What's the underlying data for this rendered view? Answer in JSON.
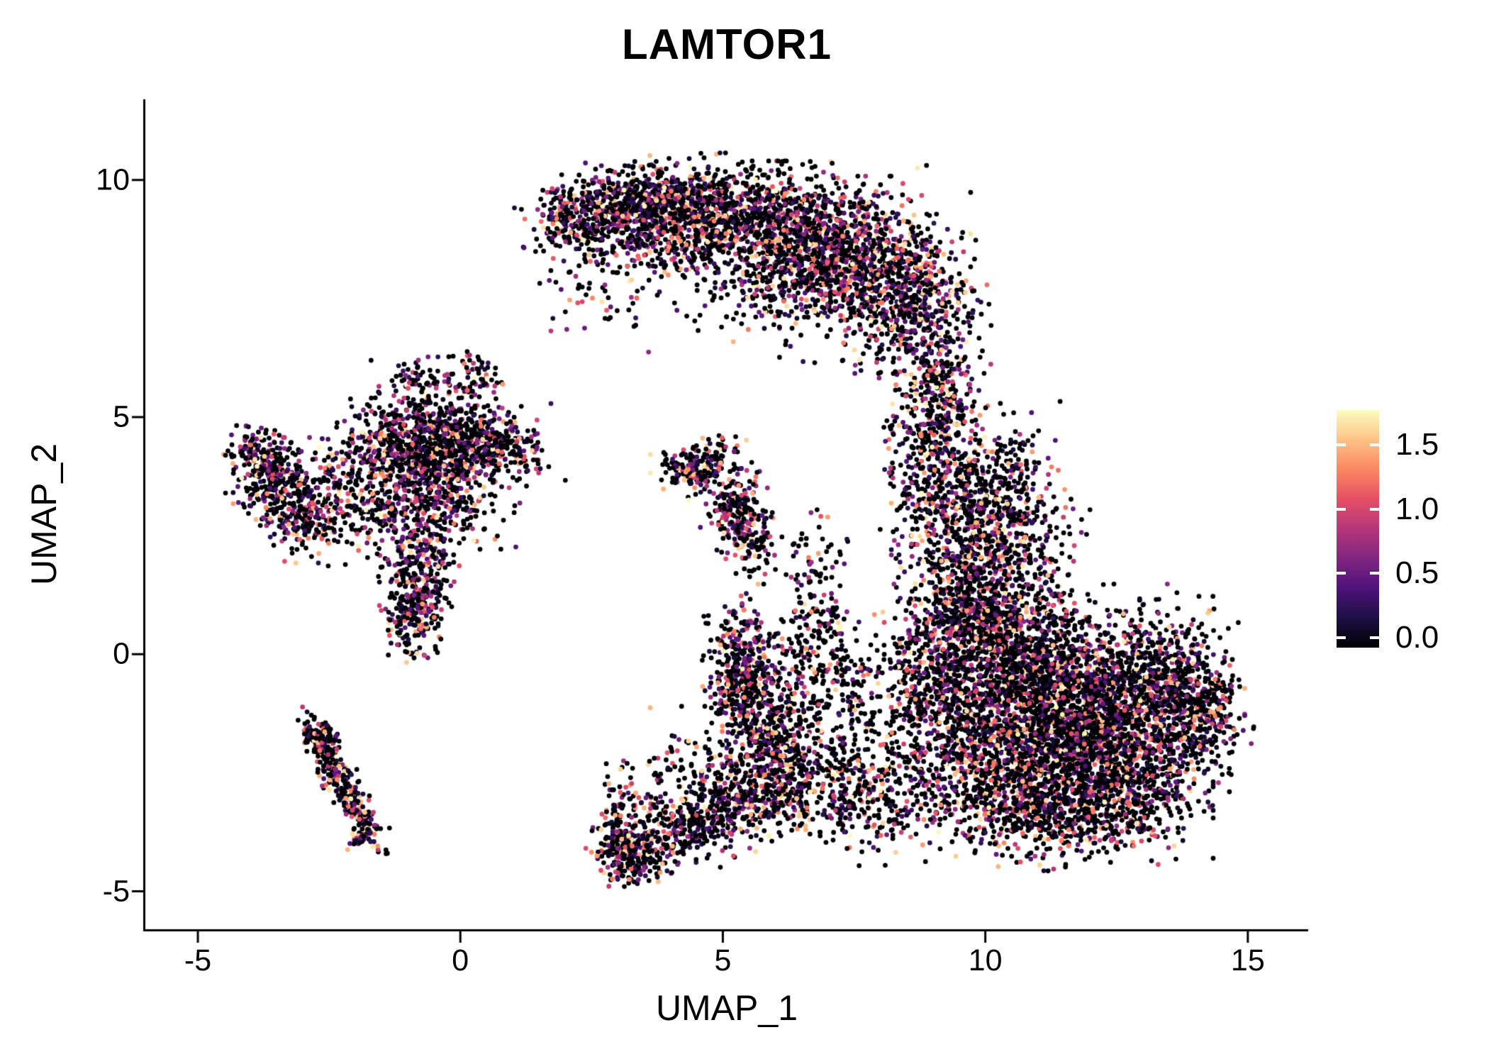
{
  "chart_data": {
    "type": "scatter",
    "title": "LAMTOR1",
    "xlabel": "UMAP_1",
    "ylabel": "UMAP_2",
    "xlim": [
      -6.0,
      16.15
    ],
    "ylim": [
      -5.8,
      11.7
    ],
    "grid": false,
    "legend_position": "right",
    "x_ticks": [
      {
        "label": "-5",
        "value": -5
      },
      {
        "label": "0",
        "value": 0
      },
      {
        "label": "5",
        "value": 5
      },
      {
        "label": "10",
        "value": 10
      },
      {
        "label": "15",
        "value": 15
      }
    ],
    "y_ticks": [
      {
        "label": "10",
        "value": 10
      },
      {
        "label": "5",
        "value": 5
      },
      {
        "label": "0",
        "value": 0
      },
      {
        "label": "-5",
        "value": -5
      }
    ],
    "colorbar": {
      "min": -0.08,
      "max": 1.772,
      "color_max": 1.772,
      "ticks": [
        {
          "label": "1.5",
          "value": 1.5
        },
        {
          "label": "1.0",
          "value": 1.0
        },
        {
          "label": "0.5",
          "value": 0.5
        },
        {
          "label": "0.0",
          "value": 0.0
        }
      ]
    },
    "colormap": {
      "name": "magma",
      "stops": [
        {
          "t": 0.0,
          "color": "#000004"
        },
        {
          "t": 0.125,
          "color": "#1C1044"
        },
        {
          "t": 0.25,
          "color": "#4F127B"
        },
        {
          "t": 0.375,
          "color": "#812581"
        },
        {
          "t": 0.5,
          "color": "#B5367A"
        },
        {
          "t": 0.625,
          "color": "#E55064"
        },
        {
          "t": 0.75,
          "color": "#FB8761"
        },
        {
          "t": 0.875,
          "color": "#FEC287"
        },
        {
          "t": 1.0,
          "color": "#FCFDBF"
        }
      ]
    },
    "point_radius": 3.4,
    "seed": 42,
    "clusters": [
      {
        "cx": 2.2,
        "cy": 9.2,
        "sx": 0.45,
        "sy": 0.35,
        "n": 220,
        "zero_frac": 0.45
      },
      {
        "cx": 3.2,
        "cy": 9.5,
        "sx": 0.6,
        "sy": 0.4,
        "n": 380,
        "zero_frac": 0.45
      },
      {
        "cx": 4.4,
        "cy": 9.4,
        "sx": 0.7,
        "sy": 0.45,
        "n": 500,
        "zero_frac": 0.45
      },
      {
        "cx": 5.6,
        "cy": 9.1,
        "sx": 0.8,
        "sy": 0.5,
        "n": 550,
        "zero_frac": 0.45
      },
      {
        "cx": 6.8,
        "cy": 8.7,
        "sx": 0.8,
        "sy": 0.65,
        "n": 650,
        "zero_frac": 0.45
      },
      {
        "cx": 7.9,
        "cy": 8.0,
        "sx": 0.7,
        "sy": 0.8,
        "n": 600,
        "zero_frac": 0.45
      },
      {
        "cx": 8.8,
        "cy": 7.2,
        "sx": 0.5,
        "sy": 0.8,
        "n": 380,
        "zero_frac": 0.45
      },
      {
        "cx": 6.2,
        "cy": 7.8,
        "sx": 1.1,
        "sy": 0.55,
        "n": 280,
        "zero_frac": 0.5
      },
      {
        "cx": 4.0,
        "cy": 8.5,
        "sx": 0.8,
        "sy": 0.5,
        "n": 160,
        "zero_frac": 0.5
      },
      {
        "cx": 2.7,
        "cy": 8.0,
        "sx": 0.5,
        "sy": 0.6,
        "n": 80,
        "zero_frac": 0.5
      },
      {
        "cx": 9.2,
        "cy": 5.6,
        "sx": 0.35,
        "sy": 0.7,
        "n": 180,
        "zero_frac": 0.45
      },
      {
        "cx": 9.0,
        "cy": 4.4,
        "sx": 0.45,
        "sy": 0.7,
        "n": 240,
        "zero_frac": 0.45
      },
      {
        "cx": 9.4,
        "cy": 3.2,
        "sx": 0.55,
        "sy": 0.7,
        "n": 380,
        "zero_frac": 0.45
      },
      {
        "cx": 9.9,
        "cy": 2.0,
        "sx": 0.65,
        "sy": 0.7,
        "n": 380,
        "zero_frac": 0.45
      },
      {
        "cx": 10.4,
        "cy": 3.9,
        "sx": 0.5,
        "sy": 0.55,
        "n": 150,
        "zero_frac": 0.5
      },
      {
        "cx": 10.8,
        "cy": 2.6,
        "sx": 0.5,
        "sy": 0.6,
        "n": 150,
        "zero_frac": 0.5
      },
      {
        "cx": 10.1,
        "cy": 0.8,
        "sx": 0.7,
        "sy": 0.5,
        "n": 250,
        "zero_frac": 0.45
      },
      {
        "cx": 10.6,
        "cy": 0.0,
        "sx": 0.9,
        "sy": 0.7,
        "n": 700,
        "zero_frac": 0.5
      },
      {
        "cx": 11.6,
        "cy": -0.6,
        "sx": 1.1,
        "sy": 0.8,
        "n": 850,
        "zero_frac": 0.5
      },
      {
        "cx": 12.6,
        "cy": -1.3,
        "sx": 0.9,
        "sy": 0.8,
        "n": 750,
        "zero_frac": 0.5
      },
      {
        "cx": 11.0,
        "cy": -1.7,
        "sx": 0.9,
        "sy": 0.7,
        "n": 650,
        "zero_frac": 0.5
      },
      {
        "cx": 12.0,
        "cy": -2.5,
        "sx": 0.9,
        "sy": 0.7,
        "n": 650,
        "zero_frac": 0.5
      },
      {
        "cx": 13.5,
        "cy": -0.6,
        "sx": 0.6,
        "sy": 0.7,
        "n": 380,
        "zero_frac": 0.5
      },
      {
        "cx": 14.1,
        "cy": -1.4,
        "sx": 0.4,
        "sy": 0.7,
        "n": 220,
        "zero_frac": 0.5
      },
      {
        "cx": 10.1,
        "cy": -2.7,
        "sx": 0.7,
        "sy": 0.6,
        "n": 380,
        "zero_frac": 0.5
      },
      {
        "cx": 11.2,
        "cy": -3.4,
        "sx": 0.9,
        "sy": 0.45,
        "n": 380,
        "zero_frac": 0.5
      },
      {
        "cx": 9.4,
        "cy": -1.4,
        "sx": 0.55,
        "sy": 0.8,
        "n": 300,
        "zero_frac": 0.5
      },
      {
        "cx": 12.9,
        "cy": -3.0,
        "sx": 0.6,
        "sy": 0.45,
        "n": 220,
        "zero_frac": 0.5
      },
      {
        "cx": 9.0,
        "cy": -0.2,
        "sx": 0.5,
        "sy": 0.7,
        "n": 220,
        "zero_frac": 0.5
      },
      {
        "cx": 9.6,
        "cy": 0.9,
        "sx": 0.5,
        "sy": 0.5,
        "n": 200,
        "zero_frac": 0.5
      },
      {
        "cx": 8.3,
        "cy": -1.6,
        "sx": 0.6,
        "sy": 1.1,
        "n": 200,
        "zero_frac": 0.55
      },
      {
        "cx": 7.9,
        "cy": -3.2,
        "sx": 0.7,
        "sy": 0.5,
        "n": 150,
        "zero_frac": 0.55
      },
      {
        "cx": 6.9,
        "cy": -2.8,
        "sx": 0.6,
        "sy": 0.45,
        "n": 200,
        "zero_frac": 0.5
      },
      {
        "cx": 5.9,
        "cy": -2.8,
        "sx": 0.5,
        "sy": 0.4,
        "n": 220,
        "zero_frac": 0.5
      },
      {
        "cx": 5.1,
        "cy": -3.2,
        "sx": 0.45,
        "sy": 0.35,
        "n": 220,
        "zero_frac": 0.45,
        "rot": -0.4
      },
      {
        "cx": 4.2,
        "cy": -3.7,
        "sx": 0.45,
        "sy": 0.3,
        "n": 220,
        "zero_frac": 0.45,
        "rot": -0.4
      },
      {
        "cx": 3.3,
        "cy": -4.2,
        "sx": 0.35,
        "sy": 0.28,
        "n": 260,
        "zero_frac": 0.45
      },
      {
        "cx": 3.0,
        "cy": -3.6,
        "sx": 0.2,
        "sy": 0.5,
        "n": 120,
        "zero_frac": 0.45
      },
      {
        "cx": 5.3,
        "cy": -0.1,
        "sx": 0.3,
        "sy": 0.55,
        "n": 260,
        "zero_frac": 0.45
      },
      {
        "cx": 5.6,
        "cy": -1.0,
        "sx": 0.35,
        "sy": 0.55,
        "n": 240,
        "zero_frac": 0.45
      },
      {
        "cx": 5.9,
        "cy": -1.9,
        "sx": 0.35,
        "sy": 0.5,
        "n": 200,
        "zero_frac": 0.45
      },
      {
        "cx": 6.3,
        "cy": -0.9,
        "sx": 0.4,
        "sy": 0.8,
        "n": 120,
        "zero_frac": 0.55
      },
      {
        "cx": 4.4,
        "cy": 3.9,
        "sx": 0.3,
        "sy": 0.25,
        "n": 150,
        "zero_frac": 0.45
      },
      {
        "cx": 4.9,
        "cy": 4.2,
        "sx": 0.25,
        "sy": 0.2,
        "n": 60,
        "zero_frac": 0.5
      },
      {
        "cx": 5.3,
        "cy": 3.0,
        "sx": 0.28,
        "sy": 0.45,
        "n": 220,
        "zero_frac": 0.4
      },
      {
        "cx": 5.6,
        "cy": 2.2,
        "sx": 0.25,
        "sy": 0.4,
        "n": 70,
        "zero_frac": 0.5
      },
      {
        "cx": 6.8,
        "cy": 1.2,
        "sx": 0.3,
        "sy": 0.9,
        "n": 130,
        "zero_frac": 0.55
      },
      {
        "cx": 6.9,
        "cy": -0.1,
        "sx": 0.35,
        "sy": 0.5,
        "n": 80,
        "zero_frac": 0.55
      },
      {
        "cx": -3.6,
        "cy": 3.9,
        "sx": 0.35,
        "sy": 0.35,
        "n": 160,
        "zero_frac": 0.45
      },
      {
        "cx": -3.3,
        "cy": 3.3,
        "sx": 0.4,
        "sy": 0.4,
        "n": 180,
        "zero_frac": 0.45
      },
      {
        "cx": -2.9,
        "cy": 2.8,
        "sx": 0.35,
        "sy": 0.35,
        "n": 140,
        "zero_frac": 0.45
      },
      {
        "cx": -3.9,
        "cy": 4.3,
        "sx": 0.25,
        "sy": 0.25,
        "n": 80,
        "zero_frac": 0.45
      },
      {
        "cx": -0.8,
        "cy": 4.1,
        "sx": 0.55,
        "sy": 0.5,
        "n": 420,
        "zero_frac": 0.5
      },
      {
        "cx": -0.1,
        "cy": 4.4,
        "sx": 0.6,
        "sy": 0.4,
        "n": 280,
        "zero_frac": 0.5
      },
      {
        "cx": 0.7,
        "cy": 4.4,
        "sx": 0.5,
        "sy": 0.35,
        "n": 220,
        "zero_frac": 0.45
      },
      {
        "cx": -1.5,
        "cy": 4.5,
        "sx": 0.4,
        "sy": 0.4,
        "n": 150,
        "zero_frac": 0.45
      },
      {
        "cx": -0.4,
        "cy": 5.1,
        "sx": 0.5,
        "sy": 0.45,
        "n": 150,
        "zero_frac": 0.5
      },
      {
        "cx": -0.3,
        "cy": 3.2,
        "sx": 0.6,
        "sy": 0.5,
        "n": 260,
        "zero_frac": 0.45
      },
      {
        "cx": -0.8,
        "cy": 1.8,
        "sx": 0.3,
        "sy": 0.7,
        "n": 280,
        "zero_frac": 0.4
      },
      {
        "cx": -0.9,
        "cy": 0.8,
        "sx": 0.25,
        "sy": 0.4,
        "n": 160,
        "zero_frac": 0.4
      },
      {
        "cx": -1.7,
        "cy": 2.9,
        "sx": 0.4,
        "sy": 0.5,
        "n": 120,
        "zero_frac": 0.5
      },
      {
        "cx": -2.4,
        "cy": 3.7,
        "sx": 0.4,
        "sy": 0.5,
        "n": 100,
        "zero_frac": 0.5
      },
      {
        "cx": 0.3,
        "cy": 5.8,
        "sx": 0.3,
        "sy": 0.25,
        "n": 60,
        "zero_frac": 0.45
      },
      {
        "cx": -0.9,
        "cy": 5.8,
        "sx": 0.25,
        "sy": 0.2,
        "n": 40,
        "zero_frac": 0.5
      },
      {
        "cx": -2.55,
        "cy": -2.1,
        "sx": 0.45,
        "sy": 0.13,
        "n": 160,
        "zero_frac": 0.45,
        "rot": -1.05
      },
      {
        "cx": -2.0,
        "cy": -3.2,
        "sx": 0.45,
        "sy": 0.13,
        "n": 160,
        "zero_frac": 0.45,
        "rot": -1.05
      },
      {
        "cx": -2.7,
        "cy": -1.7,
        "sx": 0.15,
        "sy": 0.1,
        "n": 60,
        "zero_frac": 0.45
      },
      {
        "cx": -1.85,
        "cy": -3.8,
        "sx": 0.12,
        "sy": 0.15,
        "n": 50,
        "zero_frac": 0.45
      },
      {
        "cx": 4.6,
        "cy": -2.4,
        "sx": 0.7,
        "sy": 0.5,
        "n": 120,
        "zero_frac": 0.55
      },
      {
        "cx": 7.3,
        "cy": -1.2,
        "sx": 0.5,
        "sy": 0.8,
        "n": 120,
        "zero_frac": 0.6
      }
    ]
  }
}
